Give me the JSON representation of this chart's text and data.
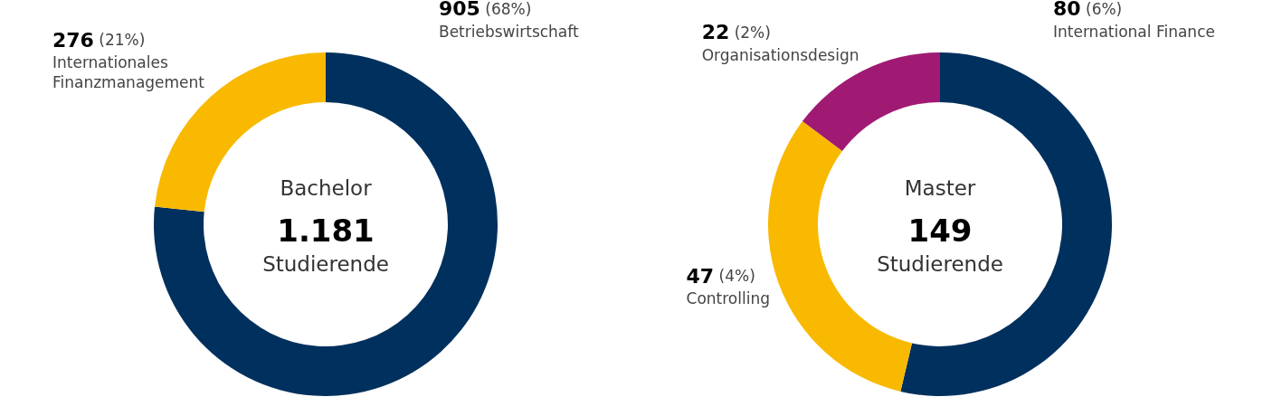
{
  "chart_data": [
    {
      "type": "donut",
      "categories": [
        "Betriebswirtschaft",
        "Internationales\nFinanzmanagement"
      ],
      "values": [
        905,
        276
      ],
      "colors": [
        "#00305d",
        "#f9b900"
      ],
      "value_labels": [
        "905 (68%)",
        "276 (21%)"
      ],
      "annotations": [
        "Bachelor",
        "1.181",
        "Studierende"
      ]
    },
    {
      "type": "donut",
      "categories": [
        "International Finance",
        "Controlling",
        "Organisationsdesign"
      ],
      "values": [
        80,
        47,
        22
      ],
      "colors": [
        "#00305d",
        "#f9b900",
        "#a01a73"
      ],
      "value_labels": [
        "80 (6%)",
        "47 (4%)",
        "22 (2%)"
      ],
      "annotations": [
        "Master",
        "149",
        "Studierende"
      ]
    }
  ]
}
